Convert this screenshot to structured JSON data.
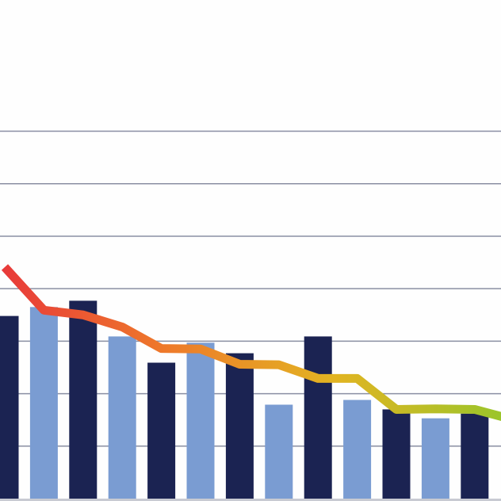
{
  "chart_data": {
    "type": "bar-line",
    "categories": [
      null,
      null,
      null,
      null,
      null,
      null,
      null,
      null,
      null,
      null,
      null,
      null,
      null,
      null
    ],
    "series": [
      {
        "type": "bar",
        "colors": [
          "#1b2352",
          "#7a9cd2",
          "#1b2352",
          "#7a9cd2",
          "#1b2352",
          "#7a9cd2",
          "#1b2352",
          "#7a9cd2",
          "#1b2352",
          "#7a9cd2",
          "#1b2352",
          "#7a9cd2",
          "#1b2352",
          "#7a9cd2"
        ],
        "values": [
          3.48,
          3.65,
          3.77,
          3.09,
          2.59,
          2.97,
          2.77,
          1.79,
          3.09,
          1.88,
          1.7,
          1.53,
          1.62,
          null
        ]
      },
      {
        "type": "line",
        "colors": [
          "#e8393a",
          "#ee7a2a",
          "#e2b422",
          "#9bc52a"
        ],
        "values": [
          4.41,
          3.59,
          3.5,
          3.27,
          2.86,
          2.85,
          2.56,
          2.55,
          2.29,
          2.29,
          1.7,
          1.71,
          1.7,
          1.5
        ]
      }
    ],
    "ylim": [
      0,
      9.5
    ],
    "yticks": [
      1,
      2,
      3,
      4,
      5,
      6,
      7
    ],
    "grid": true
  }
}
